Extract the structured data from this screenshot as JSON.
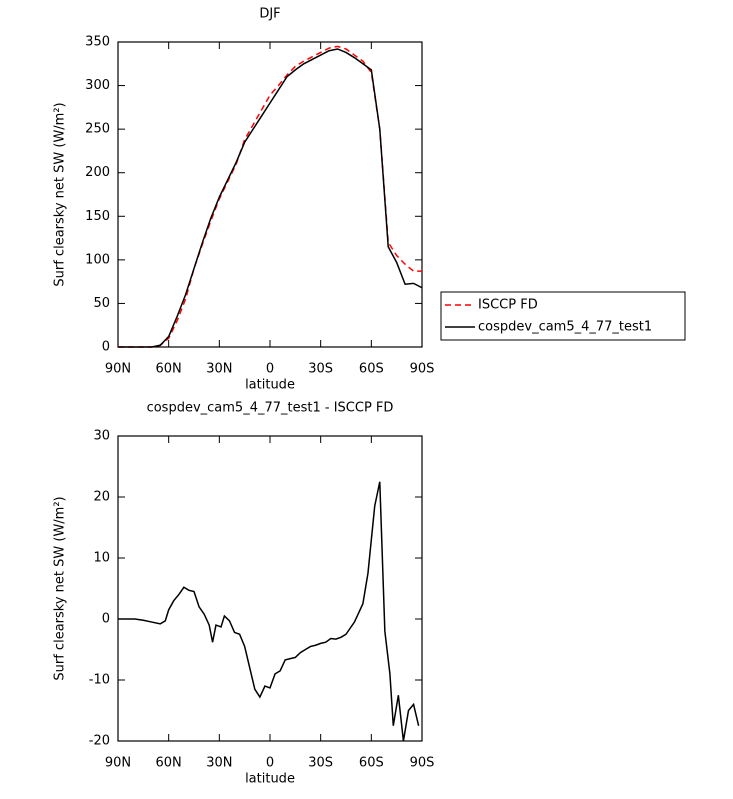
{
  "chart_data": [
    {
      "type": "line",
      "title": "DJF",
      "x_label": "latitude",
      "y_label": "Surf clearsky net SW (W/m²)",
      "xlim": [
        90,
        -90
      ],
      "xticks": [
        {
          "value": 90,
          "label": "90N"
        },
        {
          "value": 60,
          "label": "60N"
        },
        {
          "value": 30,
          "label": "30N"
        },
        0,
        {
          "value": -30,
          "label": "30S"
        },
        {
          "value": -60,
          "label": "60S"
        },
        {
          "value": -90,
          "label": "90S"
        }
      ],
      "ylim": [
        0,
        350
      ],
      "yticks": [
        0,
        50,
        100,
        150,
        200,
        250,
        300,
        350
      ],
      "legend": "outside-right",
      "x": [
        90,
        85,
        80,
        75,
        70,
        65,
        60,
        55,
        50,
        45,
        40,
        35,
        30,
        25,
        20,
        15,
        10,
        5,
        0,
        -5,
        -10,
        -15,
        -20,
        -25,
        -30,
        -35,
        -40,
        -45,
        -50,
        -55,
        -60,
        -65,
        -70,
        -75,
        -80,
        -85,
        -90
      ],
      "series": [
        {
          "name": "ISCCP FD",
          "color": "#ff0000",
          "dash": true,
          "values": [
            0,
            0,
            0,
            0,
            0,
            2,
            10,
            30,
            55,
            90,
            118,
            145,
            170,
            190,
            210,
            238,
            255,
            272,
            289,
            300,
            312,
            322,
            328,
            333,
            338,
            343,
            345,
            342,
            335,
            328,
            315,
            250,
            120,
            105,
            95,
            87,
            87
          ]
        },
        {
          "name": "cospdev_cam5_4_77_test1",
          "color": "#000000",
          "dash": false,
          "values": [
            0,
            0,
            0,
            0,
            0,
            2,
            12,
            35,
            60,
            90,
            120,
            148,
            172,
            192,
            212,
            235,
            250,
            265,
            280,
            295,
            310,
            318,
            325,
            330,
            335,
            340,
            342,
            338,
            332,
            325,
            318,
            250,
            115,
            97,
            72,
            73,
            68
          ]
        }
      ]
    },
    {
      "type": "line",
      "title": "cospdev_cam5_4_77_test1 - ISCCP FD",
      "x_label": "latitude",
      "y_label": "Surf clearsky net SW (W/m²)",
      "xlim": [
        90,
        -90
      ],
      "xticks": [
        {
          "value": 90,
          "label": "90N"
        },
        {
          "value": 60,
          "label": "60N"
        },
        {
          "value": 30,
          "label": "30N"
        },
        0,
        {
          "value": -30,
          "label": "30S"
        },
        {
          "value": -60,
          "label": "60S"
        },
        {
          "value": -90,
          "label": "90S"
        }
      ],
      "ylim": [
        -20,
        30
      ],
      "yticks": [
        -20,
        -10,
        0,
        10,
        20,
        30
      ],
      "x": [
        90,
        85,
        80,
        75,
        70,
        65,
        62,
        60,
        57,
        54,
        51,
        48,
        45,
        42,
        39,
        36,
        34,
        32,
        29,
        27,
        24,
        21,
        18,
        15,
        12,
        9,
        6,
        3,
        0,
        -3,
        -6,
        -9,
        -12,
        -15,
        -18,
        -21,
        -24,
        -27,
        -30,
        -33,
        -36,
        -39,
        -42,
        -45,
        -50,
        -55,
        -58,
        -62,
        -65,
        -68,
        -71,
        -73,
        -76,
        -79,
        -82,
        -85,
        -88
      ],
      "series": [
        {
          "name": "cospdev_cam5_4_77_test1",
          "color": "#000000",
          "dash": false,
          "values": [
            0,
            0,
            0,
            -0.2,
            -0.5,
            -0.8,
            -0.3,
            1.5,
            3,
            4,
            5.2,
            4.7,
            4.5,
            2,
            0.8,
            -1,
            -3.8,
            -1,
            -1.3,
            0.5,
            -0.3,
            -2.2,
            -2.5,
            -4.5,
            -8,
            -11.5,
            -12.8,
            -11,
            -11.3,
            -9,
            -8.5,
            -6.7,
            -6.5,
            -6.3,
            -5.5,
            -5,
            -4.5,
            -4.3,
            -4,
            -3.8,
            -3.2,
            -3.3,
            -3,
            -2.5,
            -0.5,
            2.5,
            7.5,
            18.5,
            22.5,
            -2,
            -9,
            -17.5,
            -12.5,
            -20,
            -15,
            -14,
            -17.5
          ]
        }
      ]
    }
  ]
}
